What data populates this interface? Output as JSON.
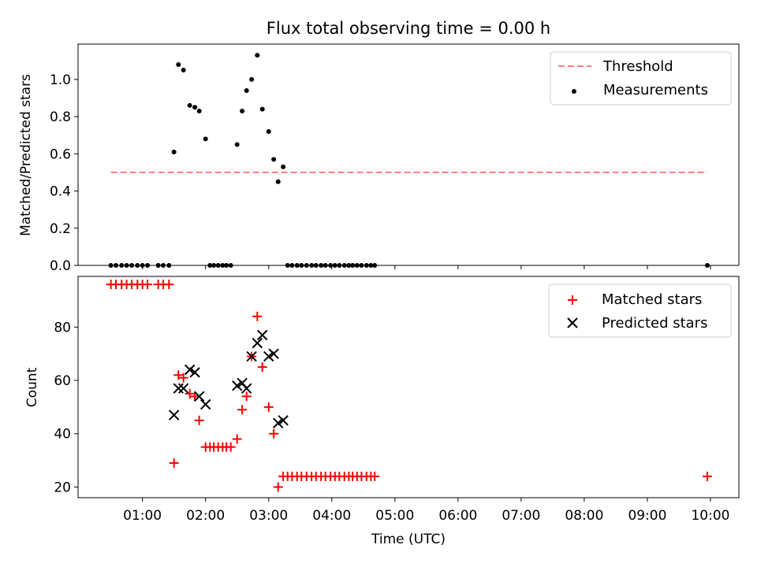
{
  "figure_title": "Flux total observing time = 0.00 h",
  "colors": {
    "threshold": "#ff7f7f",
    "measurements": "#000000",
    "matched": "#ff0000",
    "predicted": "#000000"
  },
  "chart_data": [
    {
      "type": "scatter",
      "xlabel": "",
      "ylabel": "Matched/Predicted stars",
      "ylim": [
        0,
        1.19
      ],
      "yticks": [
        0.0,
        0.2,
        0.4,
        0.6,
        0.8,
        1.0
      ],
      "ytick_labels": [
        "0.0",
        "0.2",
        "0.4",
        "0.6",
        "0.8",
        "1.0"
      ],
      "xlim_hours": [
        -0.02,
        10.45
      ],
      "xtick_hours": [
        1,
        2,
        3,
        4,
        5,
        6,
        7,
        8,
        9,
        10
      ],
      "grid": false,
      "legend_position": "top-right",
      "series": [
        {
          "name": "Threshold",
          "kind": "dashed-line",
          "x": [
            0.5,
            9.95
          ],
          "y": [
            0.5,
            0.5
          ]
        },
        {
          "name": "Measurements",
          "kind": "dot",
          "x": [
            0.5,
            0.58,
            0.67,
            0.75,
            0.83,
            0.92,
            1.0,
            1.08,
            1.25,
            1.33,
            1.42,
            1.5,
            1.57,
            1.65,
            1.75,
            1.83,
            1.9,
            2.0,
            2.07,
            2.13,
            2.2,
            2.27,
            2.33,
            2.4,
            2.5,
            2.58,
            2.65,
            2.73,
            2.82,
            2.9,
            3.0,
            3.08,
            3.15,
            3.23,
            3.3,
            3.37,
            3.45,
            3.52,
            3.6,
            3.68,
            3.75,
            3.83,
            3.9,
            3.98,
            4.05,
            4.12,
            4.2,
            4.27,
            4.33,
            4.4,
            4.47,
            4.55,
            4.62,
            4.68,
            9.95
          ],
          "y": [
            0,
            0,
            0,
            0,
            0,
            0,
            0,
            0,
            0,
            0,
            0,
            0.61,
            1.08,
            1.05,
            0.86,
            0.85,
            0.83,
            0.68,
            0,
            0,
            0,
            0,
            0,
            0,
            0.65,
            0.83,
            0.94,
            1.0,
            1.13,
            0.84,
            0.72,
            0.57,
            0.45,
            0.53,
            0,
            0,
            0,
            0,
            0,
            0,
            0,
            0,
            0,
            0,
            0,
            0,
            0,
            0,
            0,
            0,
            0,
            0,
            0,
            0,
            0
          ]
        }
      ]
    },
    {
      "type": "scatter",
      "xlabel": "Time (UTC)",
      "ylabel": "Count",
      "ylim": [
        16,
        99
      ],
      "yticks": [
        20,
        40,
        60,
        80
      ],
      "ytick_labels": [
        "20",
        "40",
        "60",
        "80"
      ],
      "xlim_hours": [
        -0.02,
        10.45
      ],
      "xtick_hours": [
        1,
        2,
        3,
        4,
        5,
        6,
        7,
        8,
        9,
        10
      ],
      "xtick_labels": [
        "01:00",
        "02:00",
        "03:00",
        "04:00",
        "05:00",
        "06:00",
        "07:00",
        "08:00",
        "09:00",
        "10:00"
      ],
      "grid": false,
      "legend_position": "top-right",
      "series": [
        {
          "name": "Matched stars",
          "kind": "plus",
          "x": [
            0.5,
            0.58,
            0.67,
            0.75,
            0.83,
            0.92,
            1.0,
            1.08,
            1.25,
            1.33,
            1.42,
            1.5,
            1.57,
            1.65,
            1.75,
            1.83,
            1.9,
            2.0,
            2.07,
            2.13,
            2.2,
            2.27,
            2.33,
            2.4,
            2.5,
            2.58,
            2.65,
            2.73,
            2.82,
            2.9,
            3.0,
            3.08,
            3.15,
            3.23,
            3.3,
            3.37,
            3.45,
            3.52,
            3.6,
            3.68,
            3.75,
            3.83,
            3.9,
            3.98,
            4.05,
            4.12,
            4.2,
            4.27,
            4.33,
            4.4,
            4.47,
            4.55,
            4.62,
            4.68,
            9.95
          ],
          "y": [
            96,
            96,
            96,
            96,
            96,
            96,
            96,
            96,
            96,
            96,
            96,
            29,
            62,
            61,
            55,
            54,
            45,
            35,
            35,
            35,
            35,
            35,
            35,
            35,
            38,
            49,
            54,
            69,
            84,
            65,
            50,
            40,
            20,
            24,
            24,
            24,
            24,
            24,
            24,
            24,
            24,
            24,
            24,
            24,
            24,
            24,
            24,
            24,
            24,
            24,
            24,
            24,
            24,
            24,
            24
          ]
        },
        {
          "name": "Predicted stars",
          "kind": "x",
          "x": [
            1.5,
            1.57,
            1.65,
            1.75,
            1.83,
            1.9,
            2.0,
            2.5,
            2.58,
            2.65,
            2.73,
            2.82,
            2.9,
            3.0,
            3.08,
            3.15,
            3.23
          ],
          "y": [
            47,
            57,
            57,
            64,
            63,
            54,
            51,
            58,
            59,
            57,
            69,
            74,
            77,
            69,
            70,
            44,
            45
          ]
        }
      ]
    }
  ]
}
